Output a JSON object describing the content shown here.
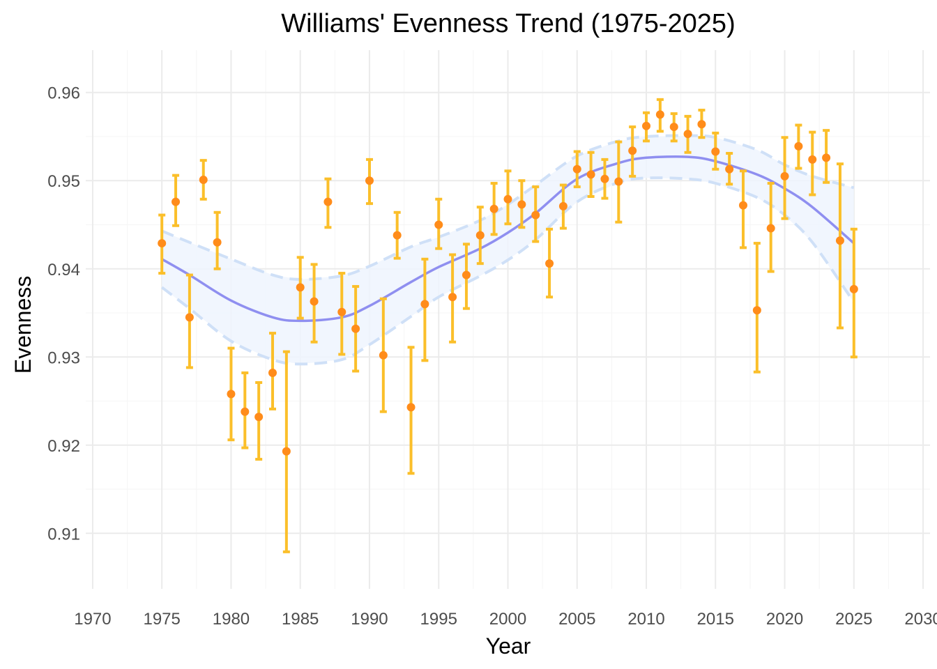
{
  "chart_data": {
    "type": "scatter",
    "title": "Williams' Evenness Trend (1975-2025)",
    "xlabel": "Year",
    "ylabel": "Evenness",
    "xlim": [
      1969.5,
      2030.5
    ],
    "ylim": [
      0.9037,
      0.9648
    ],
    "x_ticks": [
      1970,
      1975,
      1980,
      1985,
      1990,
      1995,
      2000,
      2005,
      2010,
      2015,
      2020,
      2025,
      2030
    ],
    "x_tick_labels": [
      "1970",
      "1975",
      "1980",
      "1985",
      "1990",
      "1995",
      "2000",
      "2005",
      "2010",
      "2015",
      "2020",
      "2025",
      "2030"
    ],
    "y_ticks": [
      0.91,
      0.92,
      0.93,
      0.94,
      0.95,
      0.96
    ],
    "y_tick_labels": [
      "0.91",
      "0.92",
      "0.93",
      "0.94",
      "0.95",
      "0.96"
    ],
    "grid": true,
    "colors": {
      "point": "#ff8c1a",
      "errorbar": "#fbbf2a",
      "trend_line": "#8f8ff0",
      "band_fill": "#eef5fe",
      "band_edge": "#cfe0f7"
    },
    "points": {
      "x": [
        1975,
        1976,
        1977,
        1978,
        1979,
        1980,
        1981,
        1982,
        1983,
        1984,
        1985,
        1986,
        1987,
        1988,
        1989,
        1990,
        1991,
        1992,
        1993,
        1994,
        1995,
        1996,
        1997,
        1998,
        1999,
        2000,
        2001,
        2002,
        2003,
        2004,
        2005,
        2006,
        2007,
        2008,
        2009,
        2010,
        2011,
        2012,
        2013,
        2014,
        2015,
        2016,
        2017,
        2018,
        2019,
        2020,
        2021,
        2022,
        2023,
        2024,
        2025
      ],
      "y": [
        0.9429,
        0.9476,
        0.9345,
        0.9501,
        0.943,
        0.9258,
        0.9238,
        0.9232,
        0.9282,
        0.9193,
        0.9379,
        0.9363,
        0.9476,
        0.9351,
        0.9332,
        0.95,
        0.9302,
        0.9438,
        0.9243,
        0.936,
        0.945,
        0.9368,
        0.9393,
        0.9438,
        0.9468,
        0.9479,
        0.9473,
        0.9461,
        0.9406,
        0.9471,
        0.9513,
        0.9507,
        0.9502,
        0.9499,
        0.9534,
        0.9562,
        0.9575,
        0.9561,
        0.9553,
        0.9564,
        0.9533,
        0.9513,
        0.9472,
        0.9353,
        0.9446,
        0.9505,
        0.9539,
        0.9524,
        0.9526,
        0.9432,
        0.9377
      ],
      "lower": [
        0.9395,
        0.9449,
        0.9288,
        0.9479,
        0.94,
        0.9206,
        0.9197,
        0.9184,
        0.9241,
        0.9079,
        0.9344,
        0.9317,
        0.9447,
        0.9303,
        0.9284,
        0.9474,
        0.9238,
        0.9412,
        0.9168,
        0.9296,
        0.9423,
        0.9317,
        0.9355,
        0.9406,
        0.9439,
        0.9451,
        0.9447,
        0.9431,
        0.9368,
        0.9446,
        0.9493,
        0.9482,
        0.948,
        0.9453,
        0.9505,
        0.9545,
        0.9556,
        0.9545,
        0.9532,
        0.9549,
        0.9513,
        0.9496,
        0.9424,
        0.9283,
        0.9397,
        0.9457,
        0.9514,
        0.9484,
        0.9498,
        0.9333,
        0.93
      ],
      "upper": [
        0.9461,
        0.9506,
        0.9393,
        0.9523,
        0.9464,
        0.931,
        0.9282,
        0.9271,
        0.9327,
        0.9306,
        0.9413,
        0.9405,
        0.9502,
        0.9395,
        0.938,
        0.9524,
        0.9366,
        0.9464,
        0.9311,
        0.9411,
        0.9479,
        0.9416,
        0.9428,
        0.947,
        0.9497,
        0.9511,
        0.95,
        0.9493,
        0.9445,
        0.9495,
        0.9533,
        0.9532,
        0.9524,
        0.9544,
        0.9561,
        0.9577,
        0.9592,
        0.9576,
        0.9573,
        0.958,
        0.9554,
        0.9531,
        0.9511,
        0.9429,
        0.9497,
        0.9549,
        0.9563,
        0.9555,
        0.9557,
        0.9519,
        0.9445
      ]
    },
    "trend": {
      "x": [
        1975,
        1977,
        1980,
        1983,
        1985,
        1988,
        1990,
        1993,
        1995,
        1998,
        2000,
        2002,
        2005,
        2008,
        2010,
        2013,
        2015,
        2018,
        2020,
        2022,
        2025
      ],
      "y": [
        0.9411,
        0.9393,
        0.9364,
        0.9345,
        0.9341,
        0.9345,
        0.9358,
        0.9385,
        0.9402,
        0.9423,
        0.9441,
        0.9463,
        0.9502,
        0.952,
        0.9526,
        0.9527,
        0.9522,
        0.9507,
        0.9491,
        0.947,
        0.9429
      ],
      "lower": [
        0.9379,
        0.9355,
        0.9318,
        0.9297,
        0.9292,
        0.9297,
        0.9314,
        0.9346,
        0.9368,
        0.9392,
        0.941,
        0.9433,
        0.9476,
        0.9498,
        0.9503,
        0.9502,
        0.9497,
        0.9481,
        0.9461,
        0.943,
        0.9362
      ],
      "upper": [
        0.9443,
        0.943,
        0.9411,
        0.9393,
        0.9388,
        0.9392,
        0.9403,
        0.9425,
        0.9436,
        0.9455,
        0.9473,
        0.9495,
        0.9528,
        0.9545,
        0.955,
        0.9551,
        0.9549,
        0.9535,
        0.9518,
        0.9505,
        0.9492
      ]
    }
  }
}
